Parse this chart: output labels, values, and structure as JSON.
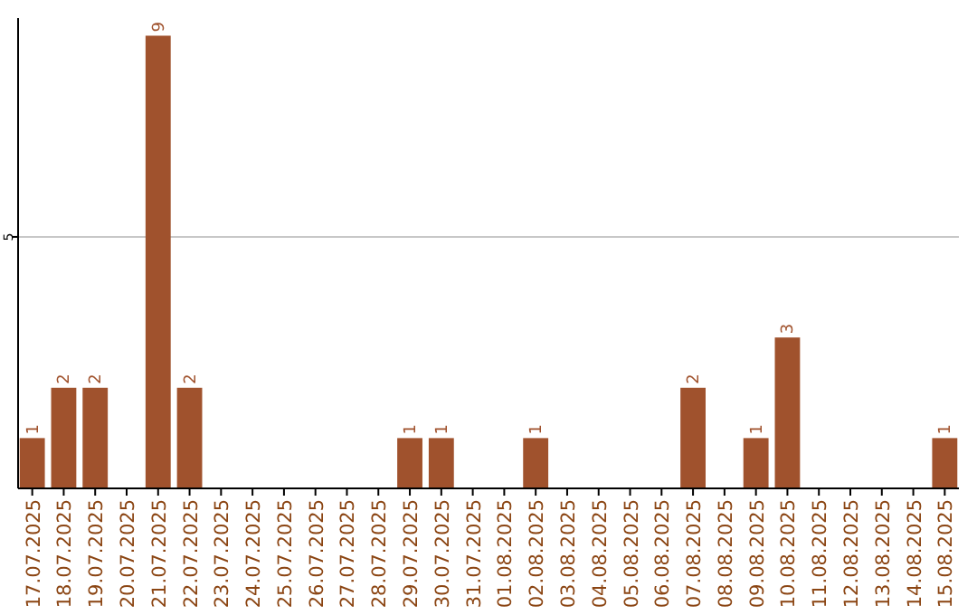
{
  "chart_data": {
    "type": "bar",
    "categories": [
      "17.07.2025",
      "18.07.2025",
      "19.07.2025",
      "20.07.2025",
      "21.07.2025",
      "22.07.2025",
      "23.07.2025",
      "24.07.2025",
      "25.07.2025",
      "26.07.2025",
      "27.07.2025",
      "28.07.2025",
      "29.07.2025",
      "30.07.2025",
      "31.07.2025",
      "01.08.2025",
      "02.08.2025",
      "03.08.2025",
      "04.08.2025",
      "05.08.2025",
      "06.08.2025",
      "07.08.2025",
      "08.08.2025",
      "09.08.2025",
      "10.08.2025",
      "11.08.2025",
      "12.08.2025",
      "13.08.2025",
      "14.08.2025",
      "15.08.2025"
    ],
    "values": [
      1,
      2,
      2,
      0,
      9,
      2,
      0,
      0,
      0,
      0,
      0,
      0,
      1,
      1,
      0,
      0,
      1,
      0,
      0,
      0,
      0,
      2,
      0,
      1,
      3,
      0,
      0,
      0,
      0,
      1
    ],
    "value_labels": [
      "1",
      "2",
      "2",
      null,
      "9",
      "2",
      null,
      null,
      null,
      null,
      null,
      null,
      "1",
      "1",
      null,
      null,
      "1",
      null,
      null,
      null,
      null,
      "2",
      null,
      "1",
      "3",
      null,
      null,
      null,
      null,
      "1"
    ],
    "color": "#a0522d",
    "ylim": [
      0,
      9.35
    ],
    "yticks": [
      5
    ],
    "grid": "y"
  }
}
